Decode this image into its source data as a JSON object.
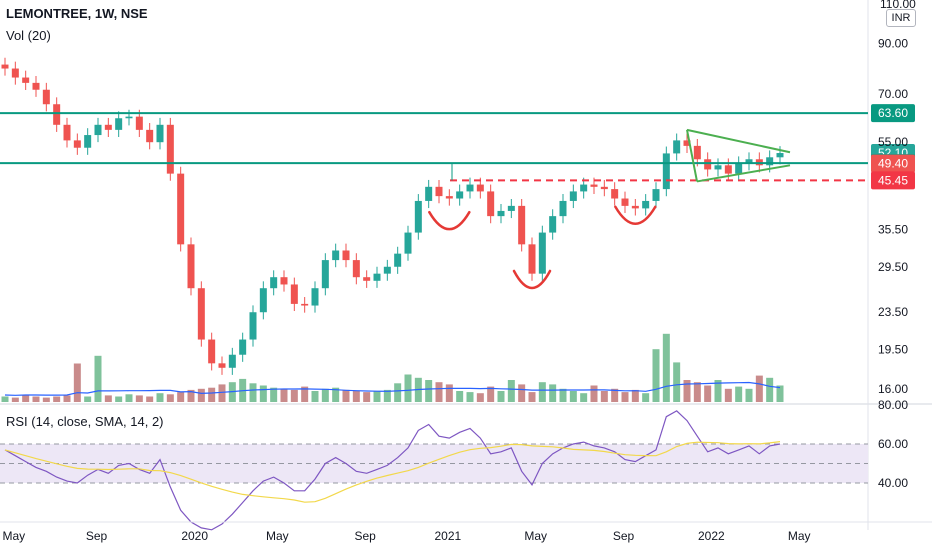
{
  "header": {
    "symbol": "LEMONTREE, 1W, NSE",
    "volume_label": "Vol (20)",
    "currency": "INR",
    "top_price": "110.00"
  },
  "colors": {
    "up": "#26a69a",
    "down": "#ef5350",
    "level_line": "#089981",
    "dashed_line": "#f23645",
    "pattern": "#e53935",
    "triangle": "#4caf50",
    "volume_up": "#7fc29b",
    "volume_down": "#c98b8b",
    "volume_ma": "#2962ff",
    "rsi_line": "#7e57c2",
    "rsi_ma": "#f2d84b",
    "rsi_band": "#ede7f6"
  },
  "rsi": {
    "label": "RSI (14, close, SMA, 14, 2)",
    "upper": "60.00",
    "lower": "40.00",
    "top": "80.00"
  },
  "chart_data": {
    "type": "candlestick",
    "timeframe": "1W",
    "x_axis": {
      "labels": [
        "May",
        "Sep",
        "2020",
        "May",
        "Sep",
        "2021",
        "May",
        "Sep",
        "2022",
        "May"
      ]
    },
    "y_axis": {
      "scale": "log",
      "tick_labels": [
        "90.00",
        "70.00",
        "55.00",
        "45.45",
        "35.50",
        "29.50",
        "23.50",
        "19.50",
        "16.00"
      ],
      "range": [
        15.0,
        112.0
      ]
    },
    "price_levels": [
      {
        "label": "63.60",
        "value": 63.6,
        "style": "solid",
        "color": "#089981"
      },
      {
        "label": "52.10",
        "value": 52.1,
        "style": "badge",
        "color": "#26a69a"
      },
      {
        "label": "49.55",
        "value": 49.55,
        "style": "solid",
        "color": "#089981"
      },
      {
        "label": "49.40",
        "value": 49.4,
        "style": "badge",
        "color": "#ef5350"
      },
      {
        "label": "45.45",
        "value": 45.45,
        "style": "dashed",
        "color": "#f23645"
      }
    ],
    "series_close": [
      79.5,
      76.0,
      74.0,
      71.5,
      66.5,
      60.0,
      55.5,
      53.5,
      57.0,
      60.0,
      58.5,
      62.0,
      62.5,
      58.5,
      55.0,
      60.0,
      47.0,
      33.0,
      26.5,
      20.5,
      18.2,
      17.8,
      19.0,
      20.5,
      23.5,
      26.5,
      28.0,
      27.0,
      24.5,
      24.3,
      26.5,
      30.5,
      32.0,
      30.5,
      28.0,
      27.5,
      28.5,
      29.5,
      31.5,
      35.0,
      41.0,
      44.0,
      42.0,
      41.5,
      43.0,
      44.5,
      43.0,
      38.0,
      39.0,
      40.0,
      33.0,
      28.5,
      35.0,
      38.0,
      41.0,
      43.0,
      44.5,
      44.0,
      43.5,
      41.5,
      40.0,
      39.5,
      41.0,
      43.5,
      52.0,
      55.5,
      54.0,
      50.5,
      48.0,
      49.0,
      47.0,
      49.5,
      50.5,
      49.0,
      51.0,
      52.1
    ],
    "volume_relative": [
      0.05,
      0.04,
      0.06,
      0.05,
      0.04,
      0.05,
      0.06,
      0.35,
      0.05,
      0.42,
      0.06,
      0.05,
      0.07,
      0.06,
      0.05,
      0.08,
      0.07,
      0.09,
      0.11,
      0.12,
      0.13,
      0.16,
      0.18,
      0.21,
      0.17,
      0.15,
      0.13,
      0.12,
      0.11,
      0.14,
      0.1,
      0.12,
      0.13,
      0.11,
      0.1,
      0.09,
      0.1,
      0.11,
      0.17,
      0.25,
      0.22,
      0.2,
      0.18,
      0.16,
      0.1,
      0.09,
      0.08,
      0.14,
      0.1,
      0.2,
      0.16,
      0.09,
      0.18,
      0.16,
      0.12,
      0.1,
      0.08,
      0.15,
      0.1,
      0.12,
      0.09,
      0.11,
      0.08,
      0.48,
      0.62,
      0.36,
      0.2,
      0.18,
      0.15,
      0.2,
      0.12,
      0.14,
      0.12,
      0.24,
      0.22,
      0.15
    ],
    "rsi_series": [
      57,
      54,
      51,
      48,
      46,
      43,
      41,
      40,
      44,
      47,
      45,
      49,
      50,
      47,
      45,
      52,
      38,
      26,
      20,
      17,
      16,
      19,
      24,
      30,
      36,
      41,
      43,
      40,
      36,
      36,
      42,
      50,
      53,
      50,
      46,
      45,
      47,
      49,
      53,
      58,
      67,
      70,
      64,
      63,
      66,
      68,
      63,
      55,
      56,
      58,
      46,
      39,
      50,
      55,
      58,
      60,
      61,
      59,
      58,
      56,
      52,
      51,
      54,
      57,
      74,
      77,
      72,
      64,
      56,
      58,
      55,
      57,
      59,
      55,
      59,
      60
    ]
  }
}
